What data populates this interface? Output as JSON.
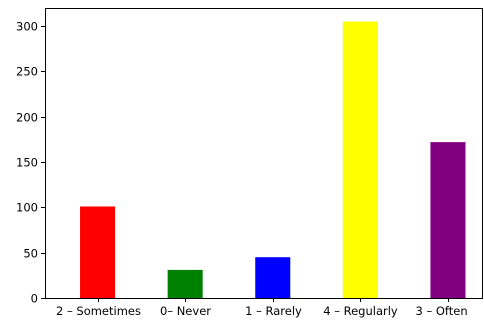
{
  "chart_data": {
    "type": "bar",
    "title": "",
    "xlabel": "",
    "ylabel": "",
    "categories": [
      "2 – Sometimes",
      "0– Never",
      "1 – Rarely",
      "4 – Regularly",
      "3 – Often"
    ],
    "values": [
      101,
      31,
      45,
      305,
      172
    ],
    "colors": [
      "#ff0000",
      "#008000",
      "#0000ff",
      "#ffff00",
      "#800080"
    ],
    "ylim": [
      0,
      320
    ],
    "yticks": [
      0,
      50,
      100,
      150,
      200,
      250,
      300
    ],
    "grid": false,
    "legend": "none"
  }
}
